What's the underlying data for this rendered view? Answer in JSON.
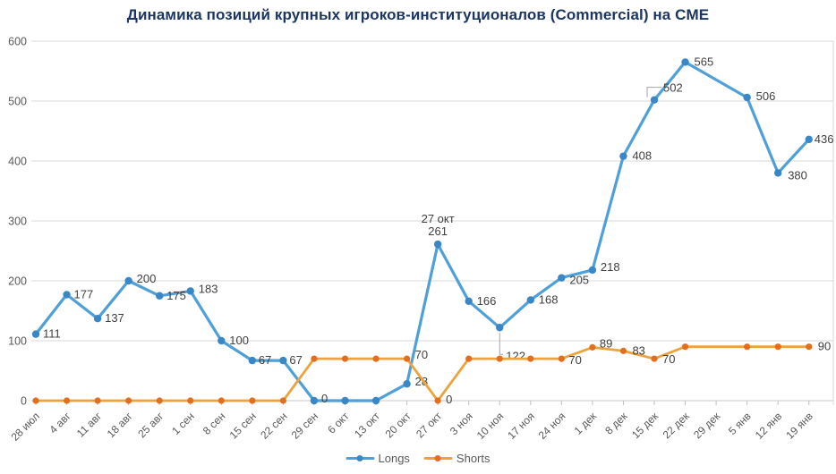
{
  "chart_data": {
    "type": "line",
    "title": "Динамика позиций крупных игроков-институционалов (Commercial) на CME",
    "categories": [
      "28 июл",
      "4 авг",
      "11 авг",
      "18 авг",
      "25 авг",
      "1 сен",
      "8 сен",
      "15 сен",
      "22 сен",
      "29 сен",
      "6 окт",
      "13 окт",
      "20 окт",
      "27 окт",
      "3 ноя",
      "10 ноя",
      "17 ноя",
      "24 ноя",
      "1 дек",
      "8 дек",
      "15 дек",
      "22 дек",
      "29 дек",
      "5 янв",
      "12 янв",
      "19 янв"
    ],
    "ylim": [
      0,
      600
    ],
    "yticks": [
      0,
      100,
      200,
      300,
      400,
      500,
      600
    ],
    "grid": "horizontal",
    "legend_position": "bottom-center",
    "colors": {
      "background": "#ffffff",
      "gridline": "#d9d9d9",
      "axis_line": "#c9c9c9",
      "tick": "#bfbfbf",
      "axis_text": "#595959",
      "data_label": "#404040",
      "leader_line": "#a6a6a6",
      "title": "#1c3661"
    },
    "series": [
      {
        "name": "Longs",
        "line_color": "#4f9fd9",
        "marker_color": "#3a87c8",
        "values": [
          111,
          177,
          137,
          200,
          175,
          183,
          100,
          67,
          67,
          0,
          0,
          0,
          28,
          261,
          166,
          122,
          168,
          205,
          218,
          408,
          502,
          565,
          null,
          506,
          380,
          436
        ],
        "labels": [
          {
            "i": 0,
            "text": "111",
            "dx": 8,
            "dy": 4
          },
          {
            "i": 1,
            "text": "177",
            "dx": 8,
            "dy": 4
          },
          {
            "i": 2,
            "text": "137",
            "dx": 8,
            "dy": 4
          },
          {
            "i": 3,
            "text": "200",
            "dx": 9,
            "dy": 2
          },
          {
            "i": 4,
            "text": "175",
            "dx": 8,
            "dy": 4
          },
          {
            "i": 5,
            "text": "183",
            "dx": 9,
            "dy": 2
          },
          {
            "i": 6,
            "text": "100",
            "dx": 9,
            "dy": 4
          },
          {
            "i": 7,
            "text": "67",
            "dx": 7,
            "dy": 4
          },
          {
            "i": 8,
            "text": "67",
            "dx": 7,
            "dy": 4
          },
          {
            "i": 9,
            "text": "0",
            "dx": 8,
            "dy": 2
          },
          {
            "i": 12,
            "text": "28",
            "dx": 9,
            "dy": 2
          },
          {
            "i": 13,
            "text": "261",
            "dx": 0,
            "dy": -10,
            "anchor": "middle"
          },
          {
            "i": 14,
            "text": "166",
            "dx": 9,
            "dy": 4
          },
          {
            "i": 15,
            "text": "122",
            "dx": 7,
            "dy": 36,
            "leader": "down"
          },
          {
            "i": 16,
            "text": "168",
            "dx": 9,
            "dy": 4
          },
          {
            "i": 17,
            "text": "205",
            "dx": 9,
            "dy": 7
          },
          {
            "i": 18,
            "text": "218",
            "dx": 9,
            "dy": 1
          },
          {
            "i": 19,
            "text": "408",
            "dx": 10,
            "dy": 4
          },
          {
            "i": 20,
            "text": "502",
            "dx": 10,
            "dy": -9,
            "leader": "elbow"
          },
          {
            "i": 21,
            "text": "565",
            "dx": 10,
            "dy": 4
          },
          {
            "i": 23,
            "text": "506",
            "dx": 10,
            "dy": 3
          },
          {
            "i": 24,
            "text": "380",
            "dx": 11,
            "dy": 7
          },
          {
            "i": 25,
            "text": "436",
            "dx": 6,
            "dy": 4
          }
        ]
      },
      {
        "name": "Shorts",
        "line_color": "#eca33d",
        "marker_color": "#e36f1e",
        "values": [
          0,
          0,
          0,
          0,
          0,
          0,
          0,
          0,
          0,
          70,
          70,
          70,
          70,
          0,
          70,
          70,
          70,
          70,
          89,
          83,
          70,
          90,
          null,
          90,
          90,
          90
        ],
        "labels": [
          {
            "i": 12,
            "text": "70",
            "dx": 9,
            "dy": 0
          },
          {
            "i": 13,
            "text": "0",
            "dx": 9,
            "dy": 3
          },
          {
            "i": 17,
            "text": "70",
            "dx": 8,
            "dy": 6
          },
          {
            "i": 18,
            "text": "89",
            "dx": 8,
            "dy": 0
          },
          {
            "i": 19,
            "text": "83",
            "dx": 10,
            "dy": 4
          },
          {
            "i": 20,
            "text": "70",
            "dx": 9,
            "dy": 5
          },
          {
            "i": 25,
            "text": "90",
            "dx": 10,
            "dy": 4
          }
        ]
      }
    ],
    "annotations": [
      {
        "series": 0,
        "i": 13,
        "text": "27 окт",
        "dx": 0,
        "dy": -24,
        "anchor": "middle"
      }
    ]
  }
}
